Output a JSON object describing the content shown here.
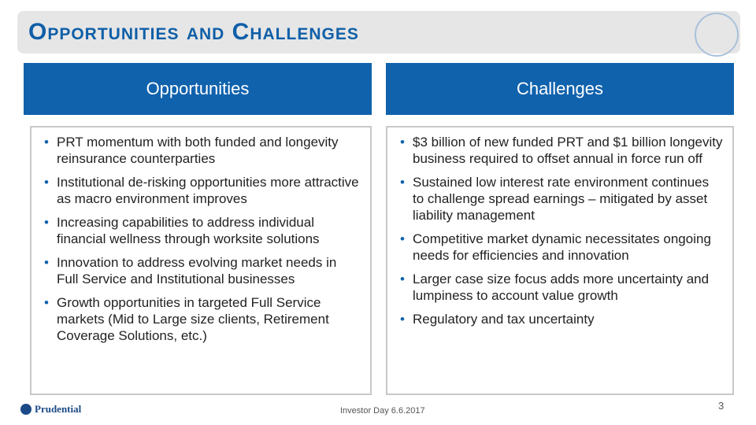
{
  "header": {
    "title": "Opportunities and Challenges"
  },
  "columns": [
    {
      "heading": "Opportunities",
      "bullets": [
        "PRT momentum with both funded and longevity reinsurance counterparties",
        "Institutional de-risking opportunities more attractive as macro environment improves",
        "Increasing capabilities to address individual financial wellness through worksite solutions",
        "Innovation to address evolving market needs in Full Service and Institutional businesses",
        "Growth opportunities in targeted Full Service markets (Mid to Large size clients, Retirement Coverage Solutions, etc.)"
      ]
    },
    {
      "heading": "Challenges",
      "bullets": [
        "$3 billion of new funded PRT and $1 billion longevity business required to offset annual in force run off",
        "Sustained low interest rate environment continues to challenge spread earnings – mitigated by asset liability management",
        "Competitive market dynamic necessitates ongoing needs for efficiencies and innovation",
        "Larger case size focus adds more uncertainty and lumpiness to account value growth",
        "Regulatory and tax uncertainty"
      ]
    }
  ],
  "footer": {
    "logo": "Prudential",
    "event": "Investor Day 6.6.2017",
    "page": "3"
  }
}
